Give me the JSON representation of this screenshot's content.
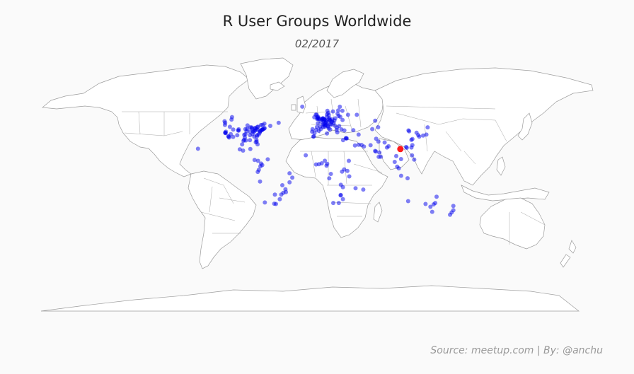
{
  "chart_data": {
    "type": "scatter",
    "title": "R User Groups Worldwide",
    "subtitle": "02/2017",
    "caption": "Source: meetup.com | By: @anchu",
    "colors": {
      "point": "#0000ee",
      "highlight": "#ff1a1a",
      "land": "#ffffff",
      "background": "#fafafa"
    },
    "point_opacity": 0.5,
    "highlight": {
      "lon": 105.8,
      "lat": 21.0
    },
    "xlim": [
      -180,
      180
    ],
    "ylim": [
      -60,
      83
    ],
    "points": [
      [
        -122.4,
        47.6
      ],
      [
        -123.1,
        49.3
      ],
      [
        -114.1,
        51.0
      ],
      [
        -113.5,
        53.5
      ],
      [
        -122.7,
        45.5
      ],
      [
        -122.4,
        37.8
      ],
      [
        -122.0,
        37.4
      ],
      [
        -121.9,
        37.3
      ],
      [
        -121.5,
        38.6
      ],
      [
        -118.2,
        34.0
      ],
      [
        -117.9,
        33.7
      ],
      [
        -117.2,
        32.7
      ],
      [
        -115.1,
        36.2
      ],
      [
        -112.0,
        33.4
      ],
      [
        -111.9,
        40.8
      ],
      [
        -116.2,
        43.6
      ],
      [
        -105.0,
        39.7
      ],
      [
        -105.3,
        40.0
      ],
      [
        -106.6,
        35.1
      ],
      [
        -104.8,
        41.1
      ],
      [
        -97.7,
        30.3
      ],
      [
        -96.8,
        32.8
      ],
      [
        -95.4,
        29.8
      ],
      [
        -98.5,
        29.4
      ],
      [
        -97.5,
        35.5
      ],
      [
        -95.9,
        36.2
      ],
      [
        -94.6,
        39.1
      ],
      [
        -90.2,
        38.6
      ],
      [
        -96.0,
        41.3
      ],
      [
        -93.3,
        45.0
      ],
      [
        -93.6,
        41.6
      ],
      [
        -89.4,
        43.1
      ],
      [
        -87.9,
        43.0
      ],
      [
        -87.6,
        41.9
      ],
      [
        -86.2,
        39.8
      ],
      [
        -84.5,
        39.1
      ],
      [
        -83.0,
        40.0
      ],
      [
        -81.7,
        41.5
      ],
      [
        -83.0,
        42.3
      ],
      [
        -83.7,
        42.3
      ],
      [
        -80.0,
        40.4
      ],
      [
        -79.4,
        43.7
      ],
      [
        -80.5,
        43.5
      ],
      [
        -75.7,
        45.4
      ],
      [
        -73.6,
        45.5
      ],
      [
        -71.2,
        46.8
      ],
      [
        -74.0,
        40.7
      ],
      [
        -73.9,
        40.8
      ],
      [
        -74.2,
        40.7
      ],
      [
        -72.9,
        41.3
      ],
      [
        -71.1,
        42.4
      ],
      [
        -71.4,
        41.8
      ],
      [
        -75.2,
        40.0
      ],
      [
        -76.6,
        39.3
      ],
      [
        -77.0,
        38.9
      ],
      [
        -77.4,
        37.5
      ],
      [
        -78.6,
        35.8
      ],
      [
        -80.8,
        35.2
      ],
      [
        -84.4,
        33.7
      ],
      [
        -86.8,
        36.2
      ],
      [
        -90.0,
        35.1
      ],
      [
        -85.8,
        38.3
      ],
      [
        -81.4,
        28.5
      ],
      [
        -82.5,
        28.0
      ],
      [
        -80.2,
        25.8
      ],
      [
        -81.7,
        30.3
      ],
      [
        -90.1,
        30.0
      ],
      [
        -81.0,
        34.0
      ],
      [
        -63.6,
        44.6
      ],
      [
        -52.7,
        47.6
      ],
      [
        -157.8,
        21.3
      ],
      [
        -99.1,
        19.4
      ],
      [
        -103.3,
        20.7
      ],
      [
        -100.3,
        25.7
      ],
      [
        -89.6,
        21.0
      ],
      [
        -84.1,
        9.9
      ],
      [
        -79.5,
        9.0
      ],
      [
        -74.1,
        4.7
      ],
      [
        -75.6,
        6.2
      ],
      [
        -76.5,
        3.4
      ],
      [
        -66.9,
        10.5
      ],
      [
        -78.5,
        -0.2
      ],
      [
        -79.9,
        -2.2
      ],
      [
        -77.0,
        -12.0
      ],
      [
        -70.7,
        -33.4
      ],
      [
        -58.4,
        -34.6
      ],
      [
        -56.2,
        -34.9
      ],
      [
        -57.6,
        -25.3
      ],
      [
        -46.6,
        -23.5
      ],
      [
        -43.2,
        -22.9
      ],
      [
        -47.9,
        -15.8
      ],
      [
        -43.9,
        -19.9
      ],
      [
        -49.3,
        -25.4
      ],
      [
        -51.2,
        -30.0
      ],
      [
        -38.5,
        -12.9
      ],
      [
        -34.9,
        -8.1
      ],
      [
        -38.5,
        -3.7
      ],
      [
        -0.1,
        51.5
      ],
      [
        -2.2,
        53.5
      ],
      [
        -1.5,
        53.8
      ],
      [
        -3.2,
        55.9
      ],
      [
        -4.3,
        55.9
      ],
      [
        -6.3,
        53.3
      ],
      [
        -2.6,
        51.5
      ],
      [
        -1.3,
        51.8
      ],
      [
        0.1,
        52.2
      ],
      [
        -1.9,
        52.5
      ],
      [
        2.4,
        48.9
      ],
      [
        4.8,
        45.8
      ],
      [
        1.4,
        43.6
      ],
      [
        5.4,
        43.3
      ],
      [
        7.3,
        43.7
      ],
      [
        -1.6,
        47.2
      ],
      [
        4.4,
        50.8
      ],
      [
        3.7,
        51.1
      ],
      [
        4.9,
        52.4
      ],
      [
        4.5,
        51.9
      ],
      [
        5.1,
        52.1
      ],
      [
        6.1,
        49.6
      ],
      [
        8.7,
        50.1
      ],
      [
        13.4,
        52.5
      ],
      [
        10.0,
        53.6
      ],
      [
        11.6,
        48.1
      ],
      [
        9.2,
        48.8
      ],
      [
        6.8,
        51.2
      ],
      [
        6.9,
        50.9
      ],
      [
        7.1,
        50.7
      ],
      [
        13.7,
        51.0
      ],
      [
        12.4,
        51.3
      ],
      [
        8.5,
        47.4
      ],
      [
        6.1,
        46.2
      ],
      [
        7.4,
        46.9
      ],
      [
        16.4,
        48.2
      ],
      [
        14.4,
        50.1
      ],
      [
        16.6,
        49.2
      ],
      [
        19.0,
        47.5
      ],
      [
        21.0,
        52.2
      ],
      [
        19.9,
        50.1
      ],
      [
        17.0,
        51.1
      ],
      [
        12.6,
        55.7
      ],
      [
        10.2,
        56.2
      ],
      [
        10.8,
        59.9
      ],
      [
        18.1,
        59.3
      ],
      [
        11.9,
        57.7
      ],
      [
        24.9,
        60.2
      ],
      [
        24.1,
        56.9
      ],
      [
        25.3,
        54.7
      ],
      [
        27.6,
        53.9
      ],
      [
        30.5,
        50.5
      ],
      [
        37.6,
        55.8
      ],
      [
        30.3,
        59.9
      ],
      [
        49.1,
        55.8
      ],
      [
        26.1,
        44.4
      ],
      [
        23.3,
        42.7
      ],
      [
        20.5,
        44.8
      ],
      [
        16.0,
        45.8
      ],
      [
        14.5,
        46.1
      ],
      [
        23.7,
        38.0
      ],
      [
        22.9,
        40.6
      ],
      [
        29.0,
        41.0
      ],
      [
        32.9,
        39.9
      ],
      [
        12.5,
        41.9
      ],
      [
        9.2,
        45.5
      ],
      [
        11.3,
        43.8
      ],
      [
        11.3,
        44.5
      ],
      [
        14.3,
        40.9
      ],
      [
        7.7,
        45.1
      ],
      [
        -3.7,
        40.4
      ],
      [
        2.2,
        41.4
      ],
      [
        -0.4,
        39.5
      ],
      [
        -5.9,
        37.4
      ],
      [
        -9.1,
        38.7
      ],
      [
        -8.6,
        41.2
      ],
      [
        -2.9,
        43.3
      ],
      [
        -21.9,
        64.1
      ],
      [
        34.8,
        32.1
      ],
      [
        35.2,
        31.8
      ],
      [
        35.9,
        31.9
      ],
      [
        31.2,
        30.0
      ],
      [
        46.7,
        24.7
      ],
      [
        55.3,
        25.2
      ],
      [
        51.5,
        25.3
      ],
      [
        51.4,
        35.7
      ],
      [
        67.0,
        24.9
      ],
      [
        74.3,
        31.5
      ],
      [
        77.2,
        28.6
      ],
      [
        72.9,
        19.1
      ],
      [
        73.9,
        18.5
      ],
      [
        77.6,
        13.0
      ],
      [
        78.5,
        17.4
      ],
      [
        80.3,
        13.1
      ],
      [
        88.4,
        22.6
      ],
      [
        90.4,
        23.8
      ],
      [
        85.3,
        27.7
      ],
      [
        100.5,
        13.8
      ],
      [
        98.4,
        7.9
      ],
      [
        101.7,
        3.1
      ],
      [
        103.8,
        1.4
      ],
      [
        106.8,
        -6.2
      ],
      [
        115.2,
        -8.7
      ],
      [
        106.7,
        10.8
      ],
      [
        121.0,
        14.6
      ],
      [
        123.9,
        10.3
      ],
      [
        114.2,
        22.3
      ],
      [
        113.3,
        23.1
      ],
      [
        121.5,
        25.0
      ],
      [
        120.3,
        22.6
      ],
      [
        121.5,
        31.2
      ],
      [
        120.2,
        30.3
      ],
      [
        116.4,
        39.9
      ],
      [
        117.2,
        39.1
      ],
      [
        126.9,
        37.6
      ],
      [
        129.1,
        35.2
      ],
      [
        139.7,
        35.7
      ],
      [
        135.5,
        34.7
      ],
      [
        141.4,
        43.1
      ],
      [
        130.4,
        33.6
      ],
      [
        115.9,
        -32.0
      ],
      [
        138.6,
        -34.9
      ],
      [
        145.0,
        -37.8
      ],
      [
        149.1,
        -35.3
      ],
      [
        151.2,
        -33.9
      ],
      [
        153.0,
        -27.5
      ],
      [
        147.3,
        -42.9
      ],
      [
        174.8,
        -36.8
      ],
      [
        174.8,
        -41.3
      ],
      [
        172.6,
        -43.5
      ],
      [
        170.5,
        -45.9
      ],
      [
        -17.4,
        14.7
      ],
      [
        -4.0,
        5.3
      ],
      [
        -0.2,
        5.6
      ],
      [
        3.4,
        6.5
      ],
      [
        7.5,
        9.1
      ],
      [
        36.8,
        -1.3
      ],
      [
        32.6,
        0.3
      ],
      [
        39.3,
        -6.8
      ],
      [
        38.7,
        9.0
      ],
      [
        28.3,
        -15.4
      ],
      [
        31.0,
        -17.8
      ],
      [
        28.0,
        -26.2
      ],
      [
        28.2,
        -25.7
      ],
      [
        18.4,
        -33.9
      ],
      [
        25.6,
        -33.9
      ],
      [
        31.0,
        -29.9
      ],
      [
        -7.6,
        33.6
      ],
      [
        10.2,
        36.8
      ],
      [
        -6.8,
        34.0
      ],
      [
        47.5,
        -18.9
      ],
      [
        57.5,
        -20.2
      ],
      [
        27.0,
        64.0
      ],
      [
        58.3,
        23.6
      ],
      [
        29.9,
        -2.0
      ],
      [
        15.3,
        -4.3
      ],
      [
        13.2,
        -8.8
      ],
      [
        9.7,
        4.0
      ],
      [
        10.5,
        6.0
      ],
      [
        44.5,
        40.2
      ],
      [
        69.2,
        41.3
      ],
      [
        76.9,
        43.2
      ],
      [
        73.0,
        49.8
      ]
    ]
  }
}
